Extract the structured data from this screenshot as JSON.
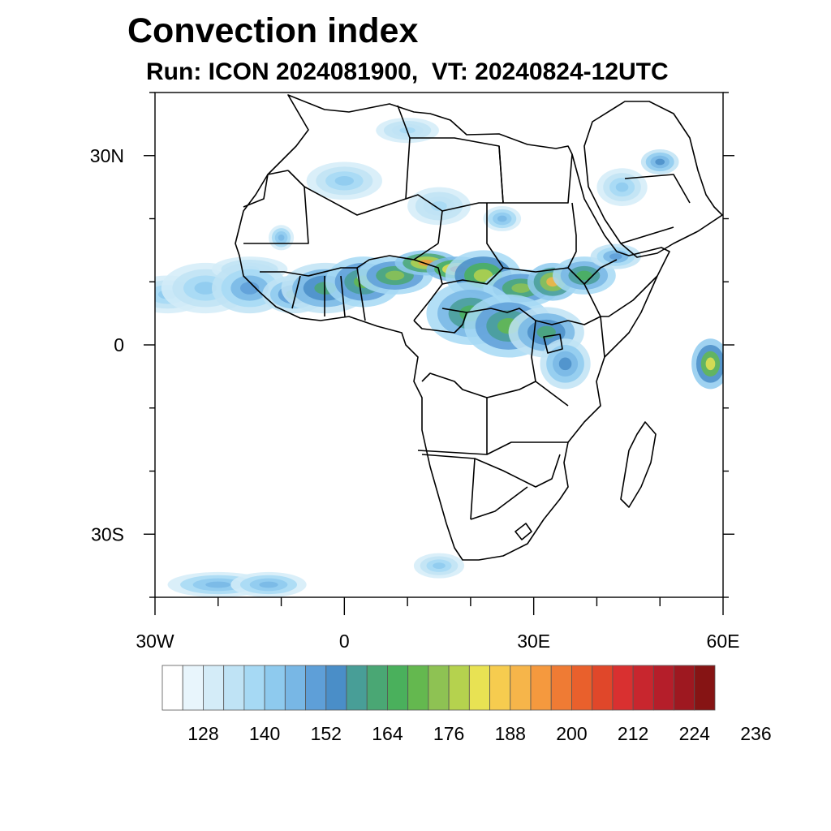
{
  "title": "Convection index",
  "subtitle": "Run: ICON 2024081900,  VT: 20240824-12UTC",
  "map": {
    "region": "Africa",
    "projection": "cylindrical equidistant",
    "lon_range": [
      -30,
      60
    ],
    "lat_range": [
      -40,
      40
    ],
    "lat_ticks": [
      {
        "value": 30,
        "label": "30N"
      },
      {
        "value": 0,
        "label": "0"
      },
      {
        "value": -30,
        "label": "30S"
      }
    ],
    "lon_ticks": [
      {
        "value": -30,
        "label": "30W"
      },
      {
        "value": 0,
        "label": "0"
      },
      {
        "value": 30,
        "label": "30E"
      },
      {
        "value": 60,
        "label": "60E"
      }
    ],
    "minor_lat_ticks": [
      40,
      20,
      10,
      -10,
      -20,
      -40
    ],
    "minor_lon_ticks": [
      -20,
      -10,
      10,
      20,
      40,
      50
    ],
    "boundaries": "country borders and coastlines",
    "features": [
      {
        "name": "West African monsoon band",
        "lon": [
          -30,
          45
        ],
        "lat": [
          3,
          15
        ]
      },
      {
        "name": "Sahel maximum",
        "lon": [
          10,
          25
        ],
        "lat": [
          12,
          15
        ]
      },
      {
        "name": "Central Africa / Great Lakes",
        "lon": [
          15,
          40
        ],
        "lat": [
          -4,
          10
        ]
      },
      {
        "name": "Southern Ocean band",
        "lon": [
          -30,
          -5
        ],
        "lat": [
          -40,
          -35
        ]
      },
      {
        "name": "Indian Ocean cell",
        "lon": [
          55,
          60
        ],
        "lat": [
          -7,
          2
        ]
      }
    ]
  },
  "colorbar": {
    "labels": [
      "128",
      "140",
      "152",
      "164",
      "176",
      "188",
      "200",
      "212",
      "224",
      "236"
    ],
    "colors": [
      "#ffffff",
      "#e8f5fc",
      "#d4ecf8",
      "#bfe3f5",
      "#a6d9f4",
      "#8ecaee",
      "#78b7e5",
      "#5e9fd8",
      "#4a8ec8",
      "#489e97",
      "#4aa774",
      "#4ab05c",
      "#64b84f",
      "#8ec253",
      "#b5d24e",
      "#e8e253",
      "#f6cc4f",
      "#f6b54a",
      "#f5993e",
      "#ef7b34",
      "#e9602c",
      "#e0472a",
      "#d93030",
      "#c8262e",
      "#b51e2a",
      "#9e1820",
      "#861414"
    ]
  }
}
